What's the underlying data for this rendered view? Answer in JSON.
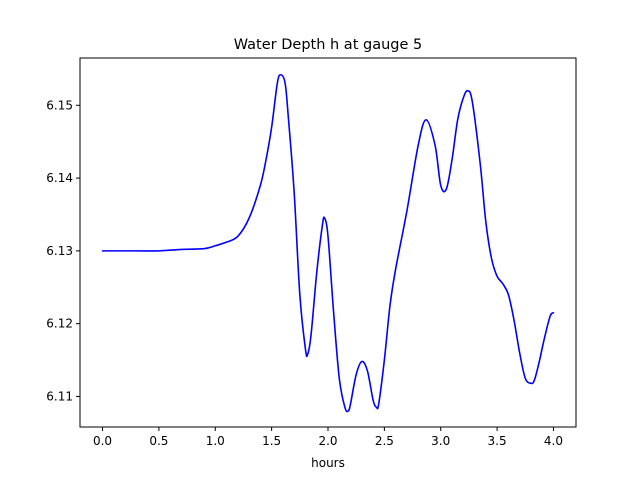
{
  "chart_data": {
    "type": "line",
    "title": "Water Depth h at gauge 5",
    "xlabel": "hours",
    "ylabel": "",
    "xlim": [
      -0.2,
      4.2
    ],
    "ylim": [
      6.1058,
      6.1565
    ],
    "xticks": [
      0.0,
      0.5,
      1.0,
      1.5,
      2.0,
      2.5,
      3.0,
      3.5,
      4.0
    ],
    "xtick_labels": [
      "0.0",
      "0.5",
      "1.0",
      "1.5",
      "2.0",
      "2.5",
      "3.0",
      "3.5",
      "4.0"
    ],
    "yticks": [
      6.11,
      6.12,
      6.13,
      6.14,
      6.15
    ],
    "ytick_labels": [
      "6.11",
      "6.12",
      "6.13",
      "6.14",
      "6.15"
    ],
    "grid": false,
    "series": [
      {
        "color": "#0000ff",
        "x": [
          0.0,
          0.3,
          0.5,
          0.7,
          0.9,
          1.0,
          1.1,
          1.2,
          1.3,
          1.4,
          1.45,
          1.5,
          1.55,
          1.58,
          1.62,
          1.65,
          1.7,
          1.75,
          1.8,
          1.82,
          1.85,
          1.9,
          1.95,
          1.97,
          2.0,
          2.05,
          2.1,
          2.15,
          2.18,
          2.2,
          2.25,
          2.3,
          2.35,
          2.4,
          2.43,
          2.45,
          2.5,
          2.55,
          2.6,
          2.7,
          2.8,
          2.87,
          2.95,
          3.0,
          3.05,
          3.1,
          3.15,
          3.2,
          3.24,
          3.28,
          3.35,
          3.4,
          3.45,
          3.5,
          3.55,
          3.6,
          3.65,
          3.7,
          3.75,
          3.8,
          3.83,
          3.87,
          3.92,
          3.97,
          4.0
        ],
        "y": [
          6.13,
          6.13,
          6.13,
          6.1302,
          6.1303,
          6.1307,
          6.1312,
          6.132,
          6.1345,
          6.139,
          6.1425,
          6.147,
          6.153,
          6.1542,
          6.153,
          6.148,
          6.138,
          6.124,
          6.1165,
          6.1158,
          6.1185,
          6.127,
          6.1335,
          6.1345,
          6.132,
          6.1215,
          6.1125,
          6.1085,
          6.108,
          6.109,
          6.113,
          6.1148,
          6.1135,
          6.1095,
          6.1085,
          6.109,
          6.115,
          6.1225,
          6.1275,
          6.1355,
          6.1445,
          6.148,
          6.1445,
          6.139,
          6.1385,
          6.1425,
          6.148,
          6.151,
          6.152,
          6.1505,
          6.142,
          6.134,
          6.129,
          6.1265,
          6.1255,
          6.124,
          6.1205,
          6.116,
          6.1125,
          6.1118,
          6.1122,
          6.1145,
          6.118,
          6.121,
          6.1215
        ]
      }
    ]
  }
}
